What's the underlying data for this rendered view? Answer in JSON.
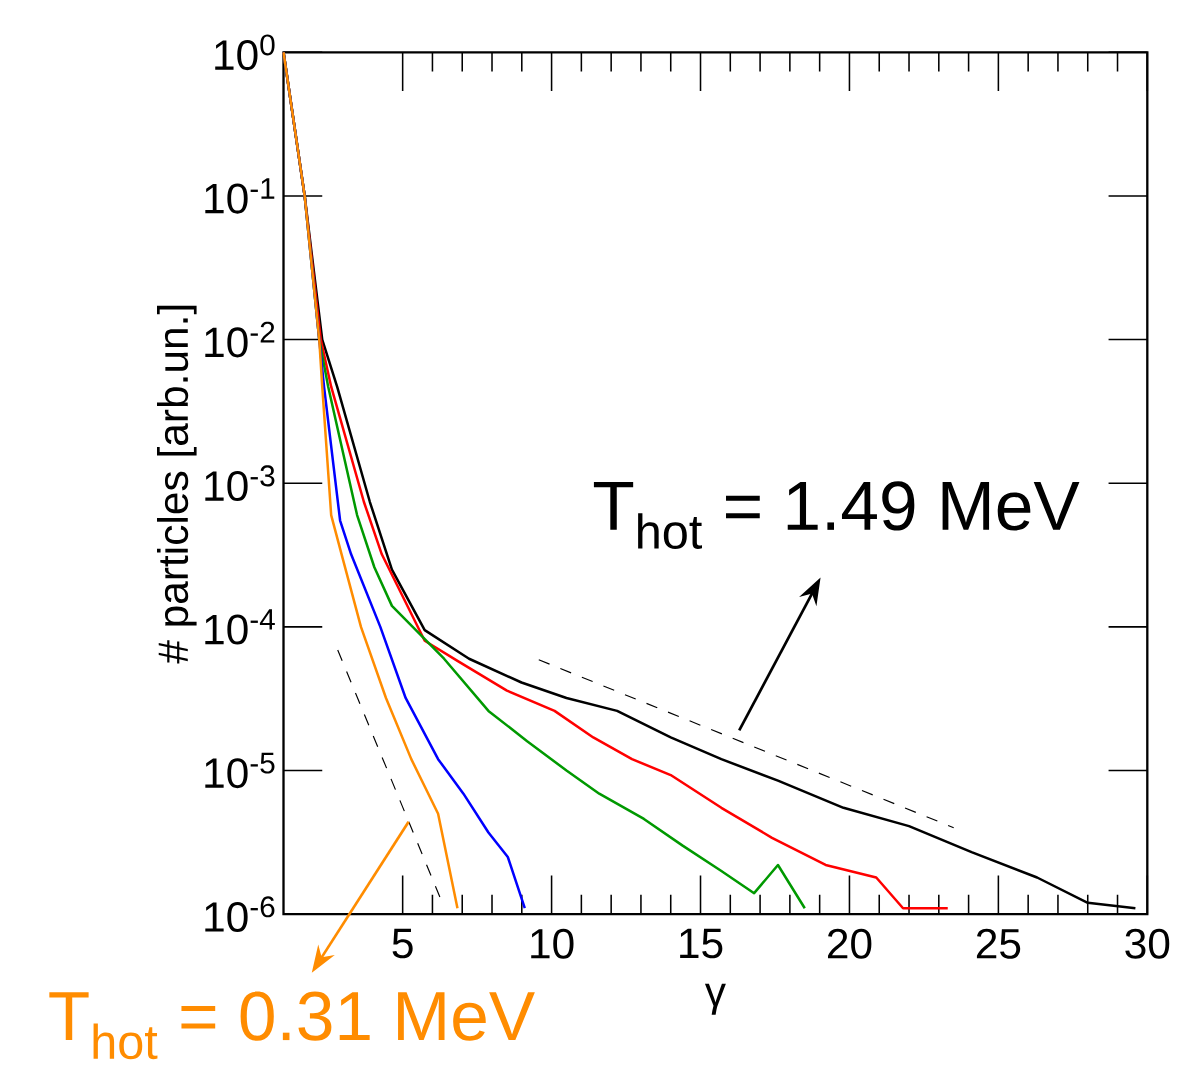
{
  "chart_data": {
    "type": "line",
    "xlabel": "γ",
    "ylabel": "# particles [arb.un.]",
    "xlim": [
      1,
      30
    ],
    "ylim": [
      1e-06,
      1
    ],
    "log": "y",
    "marker": "none",
    "xticks": [
      5,
      10,
      15,
      20,
      25,
      30
    ],
    "yticks": [
      {
        "value": 1e-06,
        "label": "10$^{-6}$"
      },
      {
        "value": 1e-05,
        "label": "10$^{-5}$"
      },
      {
        "value": 0.0001,
        "label": "10$^{-4}$"
      },
      {
        "value": 0.001,
        "label": "10$^{-3}$"
      },
      {
        "value": 0.01,
        "label": "10$^{-2}$"
      },
      {
        "value": 0.1,
        "label": "10$^{-1}$"
      },
      {
        "value": 1,
        "label": "10$^{0}$"
      }
    ],
    "annotations": [
      {
        "text": "T$_{hot}$ = 1.49 MeV",
        "x": 16.3,
        "y": 1.9e-05
      },
      {
        "text": "T$_{hot}$ = 0.31 MeV",
        "x": 5.2,
        "y": 4.4e-06
      }
    ],
    "series": [
      {
        "color": "#000000",
        "line_style": "solid",
        "x": [
          1,
          1.71,
          2.3,
          2.8,
          3.9,
          4.64,
          5.74,
          7.23,
          8.99,
          10.5,
          12.2,
          14.0,
          15.7,
          17.6,
          19.8,
          22.0,
          24.1,
          26.3,
          28.0,
          29.6
        ],
        "values": [
          1,
          0.1,
          0.01,
          0.0047,
          0.00074,
          0.00025,
          9.5e-05,
          6e-05,
          4.1e-05,
          3.2e-05,
          2.6e-05,
          1.7e-05,
          1.2e-05,
          8.5e-06,
          5.5e-06,
          4.1e-06,
          2.7e-06,
          1.8e-06,
          1.2e-06,
          1.1e-06
        ]
      },
      {
        "color": "#ff0000",
        "line_style": "solid",
        "x": [
          1,
          1.71,
          2.25,
          2.6,
          3.7,
          4.3,
          5.74,
          6.84,
          8.5,
          10.1,
          11.4,
          12.7,
          14.0,
          15.7,
          17.4,
          19.2,
          20.9,
          21.8,
          23.3
        ],
        "values": [
          1,
          0.1,
          0.01,
          0.0047,
          0.00074,
          0.00032,
          8e-05,
          5.8e-05,
          3.6e-05,
          2.6e-05,
          1.7e-05,
          1.2e-05,
          9.3e-06,
          5.5e-06,
          3.4e-06,
          2.2e-06,
          1.8e-06,
          1.1e-06,
          1.1e-06
        ]
      },
      {
        "color": "#009900",
        "line_style": "solid",
        "x": [
          1,
          1.71,
          2.2,
          2.5,
          3.47,
          4.05,
          4.64,
          6.39,
          7.88,
          9.18,
          10.5,
          11.6,
          13.1,
          14.4,
          15.7,
          16.8,
          17.6,
          18.5
        ],
        "values": [
          1,
          0.1,
          0.01,
          0.0047,
          0.0006,
          0.00026,
          0.00014,
          6e-05,
          2.6e-05,
          1.6e-05,
          1e-05,
          6.9e-06,
          4.6e-06,
          3e-06,
          2e-06,
          1.4e-06,
          2.2e-06,
          1.1e-06
        ]
      },
      {
        "color": "#0000ff",
        "line_style": "solid",
        "x": [
          1,
          1.71,
          2.2,
          2.36,
          2.9,
          3.27,
          4.25,
          5.1,
          6.19,
          7.04,
          7.88,
          8.53,
          9.1
        ],
        "values": [
          1,
          0.1,
          0.01,
          0.0047,
          0.00055,
          0.00032,
          0.0001,
          3.2e-05,
          1.2e-05,
          6.9e-06,
          3.7e-06,
          2.5e-06,
          1.1e-06
        ]
      },
      {
        "color": "#ff8c00",
        "line_style": "solid",
        "x": [
          1,
          1.71,
          2.2,
          2.3,
          2.6,
          2.95,
          3.6,
          4.44,
          5.29,
          6.19,
          6.84
        ],
        "values": [
          1,
          0.1,
          0.01,
          0.0047,
          0.0006,
          0.00032,
          0.0001,
          3.2e-05,
          1.2e-05,
          5e-06,
          1.1e-06
        ]
      },
      {
        "type": "line",
        "color": "#000000",
        "line_style": "dashed",
        "x": [
          9.57,
          23.5
        ],
        "values": [
          5.9e-05,
          4e-06
        ]
      },
      {
        "type": "line",
        "color": "#000000",
        "line_style": "dashed",
        "x": [
          2.82,
          6.26
        ],
        "values": [
          6.9e-05,
          1.3e-06
        ]
      }
    ]
  }
}
